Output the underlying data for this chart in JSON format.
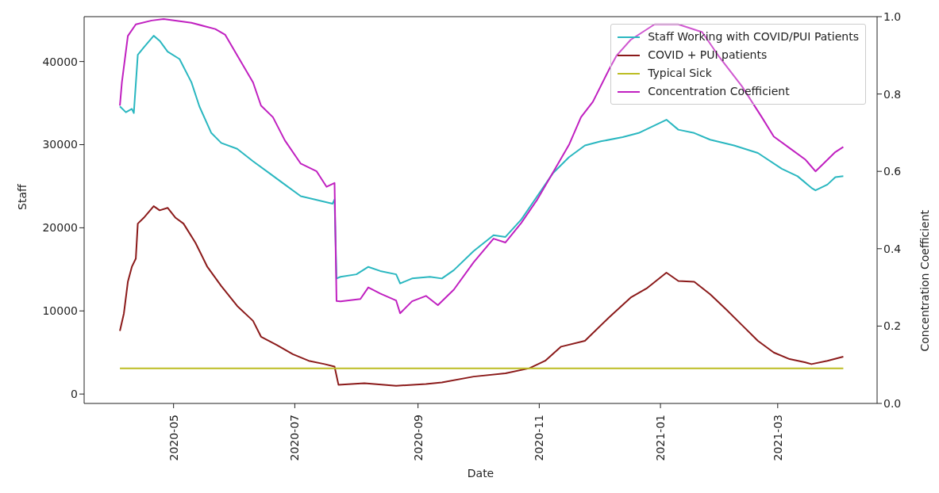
{
  "chart_data": {
    "type": "line",
    "xlabel": "Date",
    "ylabel": "Staff",
    "y2label": "Concentration Coefficient",
    "xlim": [
      "2020-03-17",
      "2021-04-20"
    ],
    "xticks": [
      "2020-05",
      "2020-07",
      "2020-09",
      "2020-11",
      "2021-01",
      "2021-03"
    ],
    "ylim": [
      -1130,
      45400
    ],
    "yticks": [
      0,
      10000,
      20000,
      30000,
      40000
    ],
    "y2lim": [
      0,
      1
    ],
    "y2ticks": [
      {
        "value": 0,
        "label": "0.0"
      },
      {
        "value": 0.2,
        "label": "0.2"
      },
      {
        "value": 0.4,
        "label": "0.4"
      },
      {
        "value": 0.6,
        "label": "0.6"
      },
      {
        "value": 0.8,
        "label": "0.8"
      },
      {
        "value": 1,
        "label": "1.0"
      }
    ],
    "legend": "top right",
    "marker": "none",
    "series": [
      {
        "name": "Staff Working with COVID/PUI Patients",
        "color": "#2ab7c0",
        "x": [
          "2020-04-04",
          "2020-04-07",
          "2020-04-10",
          "2020-04-11",
          "2020-04-13",
          "2020-04-16",
          "2020-04-21",
          "2020-04-24",
          "2020-04-28",
          "2020-05-04",
          "2020-05-10",
          "2020-05-14",
          "2020-05-20",
          "2020-05-25",
          "2020-06-02",
          "2020-06-10",
          "2020-06-18",
          "2020-06-26",
          "2020-07-04",
          "2020-07-20",
          "2020-07-21",
          "2020-07-22",
          "2020-07-24",
          "2020-08-01",
          "2020-08-07",
          "2020-08-13",
          "2020-08-21",
          "2020-08-23",
          "2020-08-29",
          "2020-09-07",
          "2020-09-13",
          "2020-09-19",
          "2020-09-29",
          "2020-10-09",
          "2020-10-15",
          "2020-10-23",
          "2020-10-31",
          "2020-11-08",
          "2020-11-16",
          "2020-11-24",
          "2020-12-02",
          "2020-12-13",
          "2020-12-21",
          "2021-01-04",
          "2021-01-10",
          "2021-01-18",
          "2021-01-26",
          "2021-02-07",
          "2021-02-19",
          "2021-03-03",
          "2021-03-11",
          "2021-03-18",
          "2021-03-20",
          "2021-03-26",
          "2021-03-30",
          "2021-04-03"
        ],
        "values": [
          34600,
          33900,
          34300,
          33800,
          40800,
          41700,
          43100,
          42500,
          41200,
          40300,
          37500,
          34600,
          31400,
          30200,
          29500,
          28000,
          26600,
          25200,
          23800,
          22900,
          23400,
          13900,
          14100,
          14400,
          15300,
          14800,
          14400,
          13300,
          13900,
          14100,
          13900,
          14900,
          17200,
          19100,
          18900,
          21000,
          23800,
          26600,
          28500,
          29900,
          30400,
          30900,
          31400,
          33000,
          31800,
          31400,
          30600,
          29900,
          29000,
          27100,
          26200,
          24800,
          24500,
          25200,
          26100,
          26200
        ]
      },
      {
        "name": "COVID + PUI patients",
        "color": "#8b1a1a",
        "x": [
          "2020-04-04",
          "2020-04-06",
          "2020-04-08",
          "2020-04-10",
          "2020-04-12",
          "2020-04-13",
          "2020-04-16",
          "2020-04-21",
          "2020-04-24",
          "2020-04-28",
          "2020-05-02",
          "2020-05-06",
          "2020-05-12",
          "2020-05-18",
          "2020-05-25",
          "2020-06-02",
          "2020-06-10",
          "2020-06-14",
          "2020-06-22",
          "2020-06-30",
          "2020-07-08",
          "2020-07-16",
          "2020-07-21",
          "2020-07-23",
          "2020-08-05",
          "2020-08-21",
          "2020-09-05",
          "2020-09-13",
          "2020-09-29",
          "2020-10-15",
          "2020-10-27",
          "2020-11-04",
          "2020-11-12",
          "2020-11-24",
          "2020-12-06",
          "2020-12-17",
          "2020-12-25",
          "2021-01-04",
          "2021-01-10",
          "2021-01-18",
          "2021-01-26",
          "2021-02-03",
          "2021-02-11",
          "2021-02-19",
          "2021-02-27",
          "2021-03-07",
          "2021-03-15",
          "2021-03-18",
          "2021-03-26",
          "2021-04-03"
        ],
        "values": [
          7600,
          9700,
          13500,
          15300,
          16300,
          20500,
          21200,
          22600,
          22100,
          22400,
          21200,
          20500,
          18200,
          15300,
          13000,
          10600,
          8800,
          6900,
          5900,
          4800,
          4000,
          3600,
          3300,
          1100,
          1300,
          1000,
          1200,
          1400,
          2100,
          2500,
          3100,
          4000,
          5700,
          6400,
          9200,
          11600,
          12700,
          14600,
          13600,
          13500,
          12000,
          10200,
          8300,
          6400,
          5000,
          4200,
          3800,
          3600,
          4000,
          4500
        ]
      },
      {
        "name": "Typical Sick",
        "color": "#bcbd22",
        "x": [
          "2020-04-04",
          "2021-04-03"
        ],
        "values": [
          3100,
          3100
        ]
      },
      {
        "name": "Concentration Coefficient",
        "color": "#c020c0",
        "axis": "y2",
        "x": [
          "2020-04-04",
          "2020-04-05",
          "2020-04-08",
          "2020-04-12",
          "2020-04-20",
          "2020-04-26",
          "2020-05-10",
          "2020-05-22",
          "2020-05-27",
          "2020-06-02",
          "2020-06-10",
          "2020-06-14",
          "2020-06-20",
          "2020-06-26",
          "2020-07-04",
          "2020-07-12",
          "2020-07-17",
          "2020-07-21",
          "2020-07-22",
          "2020-07-24",
          "2020-08-03",
          "2020-08-07",
          "2020-08-13",
          "2020-08-21",
          "2020-08-23",
          "2020-08-29",
          "2020-09-05",
          "2020-09-11",
          "2020-09-19",
          "2020-09-29",
          "2020-10-09",
          "2020-10-15",
          "2020-10-23",
          "2020-10-31",
          "2020-11-08",
          "2020-11-16",
          "2020-11-22",
          "2020-11-28",
          "2020-12-06",
          "2020-12-10",
          "2020-12-17",
          "2020-12-29",
          "2021-01-10",
          "2021-01-22",
          "2021-01-30",
          "2021-02-11",
          "2021-02-21",
          "2021-02-27",
          "2021-03-07",
          "2021-03-15",
          "2021-03-20",
          "2021-03-24",
          "2021-03-30",
          "2021-04-03"
        ],
        "values": [
          0.77,
          0.83,
          0.95,
          0.98,
          0.99,
          0.994,
          0.984,
          0.968,
          0.953,
          0.9,
          0.83,
          0.77,
          0.74,
          0.68,
          0.62,
          0.6,
          0.56,
          0.57,
          0.265,
          0.264,
          0.27,
          0.3,
          0.284,
          0.266,
          0.233,
          0.264,
          0.278,
          0.254,
          0.294,
          0.365,
          0.426,
          0.416,
          0.467,
          0.527,
          0.598,
          0.669,
          0.74,
          0.78,
          0.862,
          0.9,
          0.94,
          0.98,
          0.98,
          0.96,
          0.9,
          0.82,
          0.74,
          0.69,
          0.66,
          0.63,
          0.6,
          0.62,
          0.65,
          0.663
        ]
      }
    ]
  }
}
